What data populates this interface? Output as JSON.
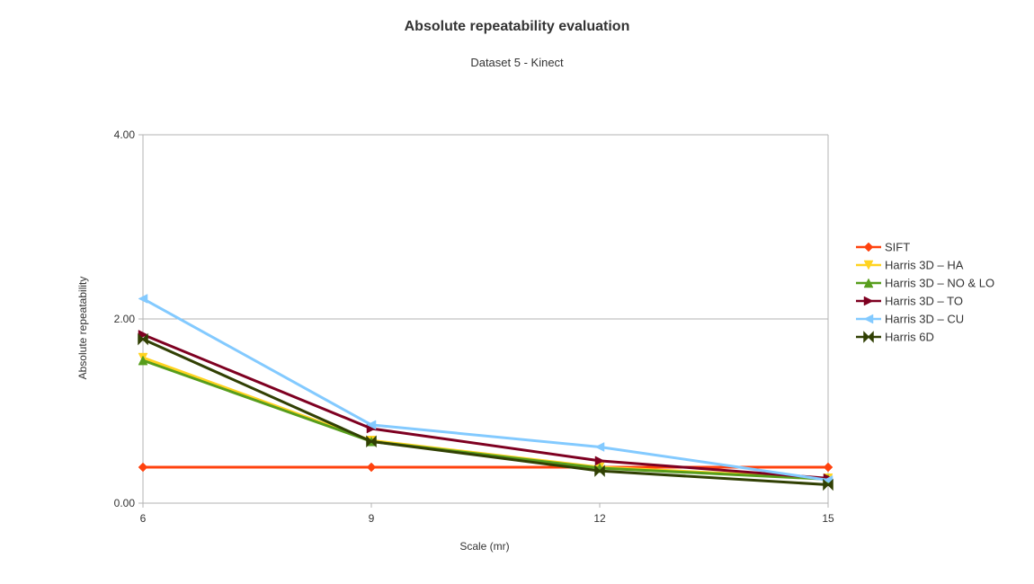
{
  "chart_data": {
    "type": "line",
    "title": "Absolute repeatability evaluation",
    "subtitle": "Dataset 5 - Kinect",
    "xlabel": "Scale (mr)",
    "ylabel": "Absolute repeatability",
    "categories": [
      "6",
      "9",
      "12",
      "15"
    ],
    "x": [
      6,
      9,
      12,
      15
    ],
    "ylim": [
      0,
      4
    ],
    "yticks": [
      0,
      2,
      4
    ],
    "ytick_labels": [
      "0.00",
      "2.00",
      "4.00"
    ],
    "grid": true,
    "legend_position": "right",
    "series": [
      {
        "name": "SIFT",
        "values": [
          0.39,
          0.39,
          0.39,
          0.39
        ],
        "color": "#ff420e",
        "marker": "diamond"
      },
      {
        "name": "Harris 3D – HA",
        "values": [
          1.58,
          0.68,
          0.39,
          0.27
        ],
        "color": "#ffd320",
        "marker": "triangle-down"
      },
      {
        "name": "Harris 3D – NO & LO",
        "values": [
          1.55,
          0.67,
          0.38,
          0.26
        ],
        "color": "#579d1c",
        "marker": "triangle-up"
      },
      {
        "name": "Harris 3D – TO",
        "values": [
          1.83,
          0.81,
          0.46,
          0.27
        ],
        "color": "#7e0021",
        "marker": "triangle-right"
      },
      {
        "name": "Harris 3D – CU",
        "values": [
          2.22,
          0.85,
          0.61,
          0.25
        ],
        "color": "#83caff",
        "marker": "triangle-left"
      },
      {
        "name": "Harris 6D",
        "values": [
          1.78,
          0.67,
          0.35,
          0.2
        ],
        "color": "#314004",
        "marker": "bowtie"
      }
    ]
  }
}
